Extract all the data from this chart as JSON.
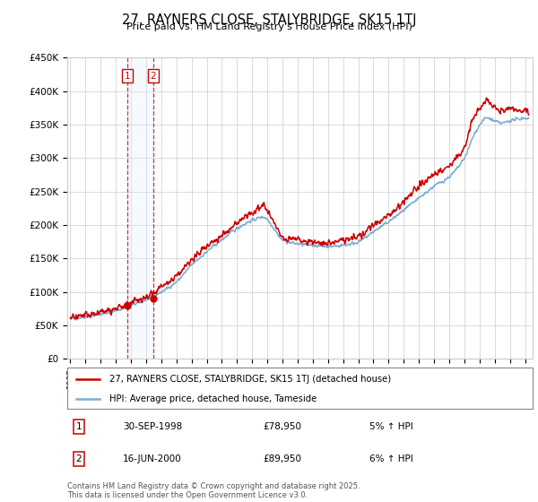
{
  "title": "27, RAYNERS CLOSE, STALYBRIDGE, SK15 1TJ",
  "subtitle": "Price paid vs. HM Land Registry's House Price Index (HPI)",
  "ylabel_ticks": [
    "£0",
    "£50K",
    "£100K",
    "£150K",
    "£200K",
    "£250K",
    "£300K",
    "£350K",
    "£400K",
    "£450K"
  ],
  "ylabel_values": [
    0,
    50000,
    100000,
    150000,
    200000,
    250000,
    300000,
    350000,
    400000,
    450000
  ],
  "ylim": [
    0,
    450000
  ],
  "xlim_start": 1994.8,
  "xlim_end": 2025.5,
  "sale1": {
    "date_num": 1998.75,
    "price": 78950,
    "label": "1",
    "date_str": "30-SEP-1998",
    "pct": "5%"
  },
  "sale2": {
    "date_num": 2000.46,
    "price": 89950,
    "label": "2",
    "date_str": "16-JUN-2000",
    "pct": "6%"
  },
  "legend_line1": "27, RAYNERS CLOSE, STALYBRIDGE, SK15 1TJ (detached house)",
  "legend_line2": "HPI: Average price, detached house, Tameside",
  "footer": "Contains HM Land Registry data © Crown copyright and database right 2025.\nThis data is licensed under the Open Government Licence v3.0.",
  "line_color_red": "#cc0000",
  "line_color_blue": "#7aadd4",
  "highlight_color": "#ddeeff",
  "grid_color": "#cccccc",
  "bg_color": "#ffffff"
}
